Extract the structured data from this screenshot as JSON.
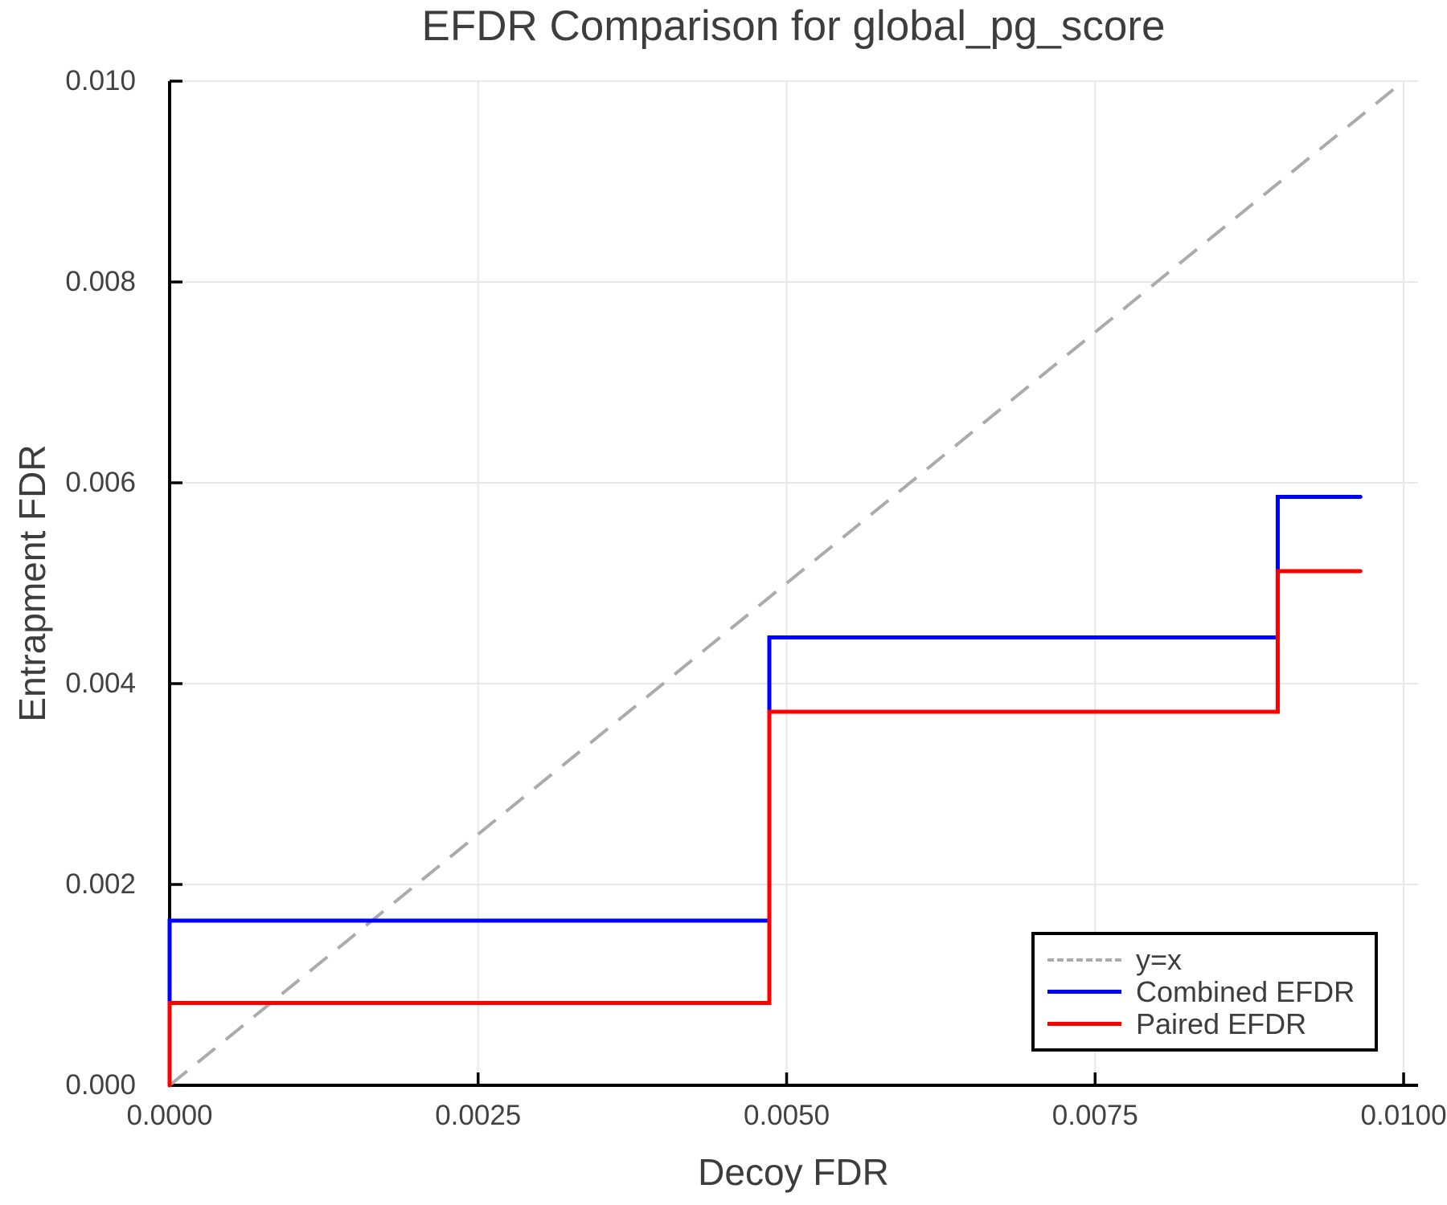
{
  "colors": {
    "background": "#ffffff",
    "grid": "#e8e8e8",
    "spine": "#000000",
    "text": "#3d3d3d",
    "tick_text": "#424242"
  },
  "chart_data": {
    "type": "line",
    "title": "EFDR Comparison for global_pg_score",
    "xlabel": "Decoy FDR",
    "ylabel": "Entrapment FDR",
    "xlim": [
      0,
      0.010117
    ],
    "ylim": [
      0,
      0.01
    ],
    "grid": true,
    "legend_position": "lower right",
    "x_ticks": [
      0.0,
      0.0025,
      0.005,
      0.0075,
      0.01
    ],
    "x_tick_labels": [
      "0.0000",
      "0.0025",
      "0.0050",
      "0.0075",
      "0.0100"
    ],
    "y_ticks": [
      0.0,
      0.002,
      0.004,
      0.006,
      0.008,
      0.01
    ],
    "y_tick_labels": [
      "0.000",
      "0.002",
      "0.004",
      "0.006",
      "0.008",
      "0.010"
    ],
    "reference_line": {
      "label": "y=x",
      "style": "dashed",
      "color": "#ababab",
      "from": [
        0,
        0
      ],
      "to": [
        0.01,
        0.01
      ]
    },
    "series": [
      {
        "name": "Combined EFDR",
        "color": "#0000ff",
        "step": true,
        "x": [
          0,
          0,
          0.00486,
          0.00486,
          0.00898,
          0.00898,
          0.00965
        ],
        "y": [
          0,
          0.00164,
          0.00164,
          0.00446,
          0.00446,
          0.00586,
          0.00586
        ]
      },
      {
        "name": "Paired EFDR",
        "color": "#ff0000",
        "step": true,
        "x": [
          0,
          0,
          0.00486,
          0.00486,
          0.00898,
          0.00898,
          0.00965
        ],
        "y": [
          0,
          0.00082,
          0.00082,
          0.00372,
          0.00372,
          0.00512,
          0.00512
        ]
      }
    ]
  },
  "legend": {
    "items": [
      {
        "label": "y=x"
      },
      {
        "label": "Combined EFDR"
      },
      {
        "label": "Paired EFDR"
      }
    ]
  }
}
